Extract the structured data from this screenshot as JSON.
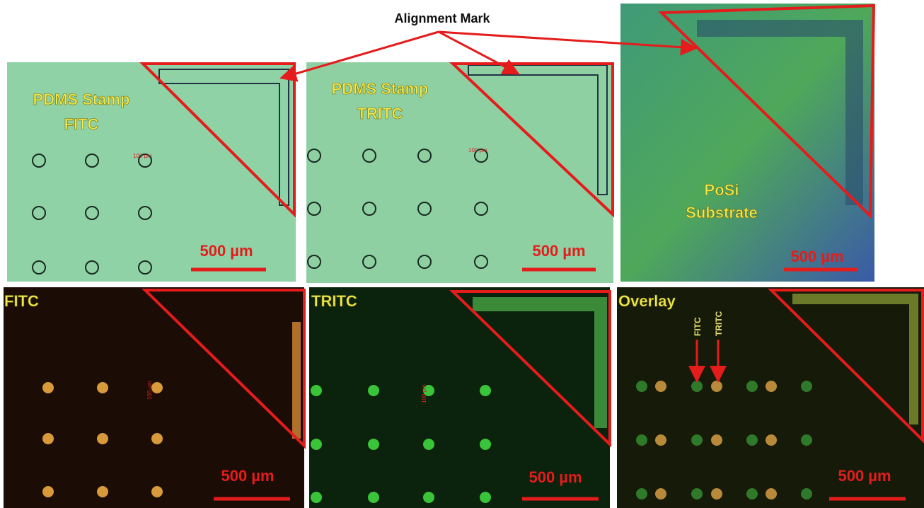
{
  "title": "Alignment Mark",
  "panels": [
    {
      "label_lines": [
        "PDMS Stamp",
        "FITC"
      ],
      "scale_bar": "500 µm",
      "small_label": "100 µm"
    },
    {
      "label_lines": [
        "PDMS Stamp",
        "TRITC"
      ],
      "scale_bar": "500 µm",
      "small_label": "100 µm"
    },
    {
      "label_lines": [
        "PoSi",
        "Substrate"
      ],
      "scale_bar": "500 µm"
    },
    {
      "label_lines": [
        "FITC"
      ],
      "scale_bar": "500 µm",
      "small_label": "100 µm"
    },
    {
      "label_lines": [
        "TRITC"
      ],
      "scale_bar": "500 µm",
      "small_label": "100 µm"
    },
    {
      "label_lines": [
        "Overlay"
      ],
      "scale_bar": "500 µm",
      "arrow_labels": [
        "FITC",
        "TRITC"
      ]
    }
  ]
}
